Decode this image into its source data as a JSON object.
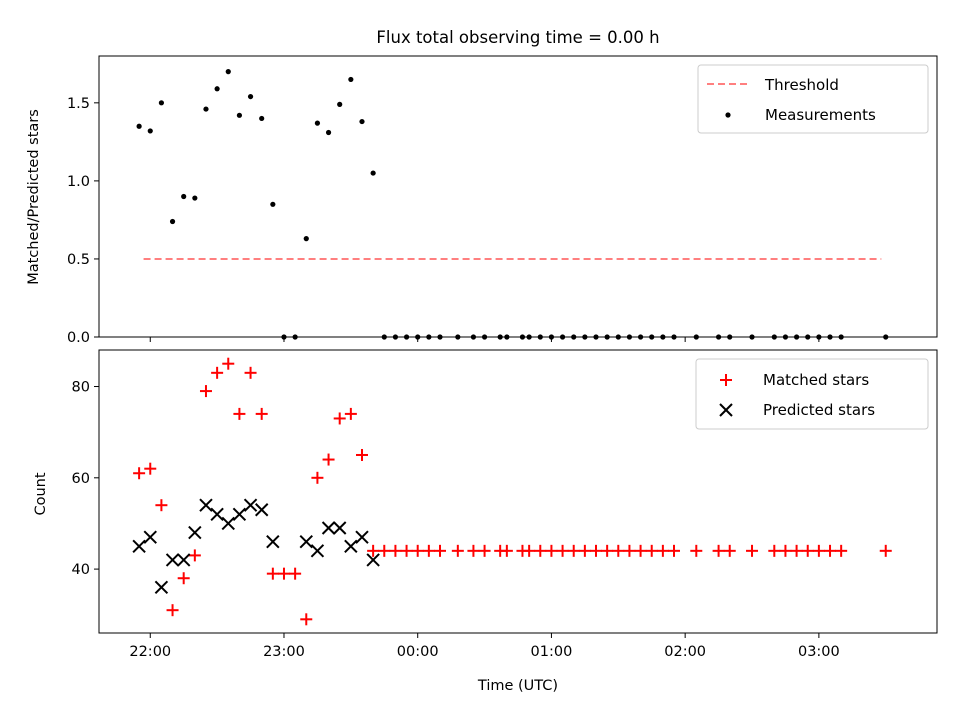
{
  "chart_data": [
    {
      "type": "scatter",
      "title": "Flux total observing time = 0.00 h",
      "xlabel": "",
      "ylabel": "Matched/Predicted stars",
      "xlim": [
        "21:37",
        "03:53"
      ],
      "ylim": [
        0,
        1.8
      ],
      "yticks": [
        0.0,
        0.5,
        1.0,
        1.5
      ],
      "yticklabels": [
        "0.0",
        "0.5",
        "1.0",
        "1.5"
      ],
      "xticks": [
        "22:00",
        "23:00",
        "00:00",
        "01:00",
        "02:00",
        "03:00"
      ],
      "xticklabels_visible": false,
      "legend": {
        "placement": "top-right",
        "entries": [
          "Threshold",
          "Measurements"
        ]
      },
      "threshold": {
        "name": "Threshold",
        "value": 0.5,
        "x_start": "21:57",
        "x_end": "03:28",
        "color": "#ff7f7f",
        "style": "dashed"
      },
      "series": [
        {
          "name": "Measurements",
          "marker": "dot",
          "color": "#000000",
          "x": [
            "21:55",
            "22:00",
            "22:05",
            "22:10",
            "22:15",
            "22:20",
            "22:25",
            "22:30",
            "22:35",
            "22:40",
            "22:45",
            "22:50",
            "22:55",
            "23:00",
            "23:05",
            "23:10",
            "23:15",
            "23:20",
            "23:25",
            "23:30",
            "23:35",
            "23:40",
            "23:45",
            "23:50",
            "23:55",
            "00:00",
            "00:05",
            "00:10",
            "00:18",
            "00:25",
            "00:30",
            "00:37",
            "00:40",
            "00:47",
            "00:50",
            "00:55",
            "01:00",
            "01:05",
            "01:10",
            "01:15",
            "01:20",
            "01:25",
            "01:30",
            "01:35",
            "01:40",
            "01:45",
            "01:50",
            "01:55",
            "02:05",
            "02:15",
            "02:20",
            "02:30",
            "02:40",
            "02:45",
            "02:50",
            "02:55",
            "03:00",
            "03:05",
            "03:10",
            "03:30"
          ],
          "y": [
            1.35,
            1.32,
            1.5,
            0.74,
            0.9,
            0.89,
            1.46,
            1.59,
            1.7,
            1.42,
            1.54,
            1.4,
            0.85,
            0.0,
            0.0,
            0.63,
            1.37,
            1.31,
            1.49,
            1.65,
            1.38,
            1.05,
            0.0,
            0.0,
            0.0,
            0.0,
            0.0,
            0.0,
            0.0,
            0.0,
            0.0,
            0.0,
            0.0,
            0.0,
            0.0,
            0.0,
            0.0,
            0.0,
            0.0,
            0.0,
            0.0,
            0.0,
            0.0,
            0.0,
            0.0,
            0.0,
            0.0,
            0.0,
            0.0,
            0.0,
            0.0,
            0.0,
            0.0,
            0.0,
            0.0,
            0.0,
            0.0,
            0.0,
            0.0,
            0.0
          ]
        }
      ]
    },
    {
      "type": "scatter",
      "title": "",
      "xlabel": "Time (UTC)",
      "ylabel": "Count",
      "xlim": [
        "21:37",
        "03:53"
      ],
      "ylim": [
        26,
        88
      ],
      "yticks": [
        40,
        60,
        80
      ],
      "yticklabels": [
        "40",
        "60",
        "80"
      ],
      "xticks": [
        "22:00",
        "23:00",
        "00:00",
        "01:00",
        "02:00",
        "03:00"
      ],
      "xticklabels": [
        "22:00",
        "23:00",
        "00:00",
        "01:00",
        "02:00",
        "03:00"
      ],
      "legend": {
        "placement": "top-right",
        "entries": [
          "Matched stars",
          "Predicted stars"
        ]
      },
      "series": [
        {
          "name": "Matched stars",
          "marker": "plus",
          "color": "#ff0000",
          "x": [
            "21:55",
            "22:00",
            "22:05",
            "22:10",
            "22:15",
            "22:20",
            "22:25",
            "22:30",
            "22:35",
            "22:40",
            "22:45",
            "22:50",
            "22:55",
            "23:00",
            "23:05",
            "23:10",
            "23:15",
            "23:20",
            "23:25",
            "23:30",
            "23:35",
            "23:40",
            "23:45",
            "23:50",
            "23:55",
            "00:00",
            "00:05",
            "00:10",
            "00:18",
            "00:25",
            "00:30",
            "00:37",
            "00:40",
            "00:47",
            "00:50",
            "00:55",
            "01:00",
            "01:05",
            "01:10",
            "01:15",
            "01:20",
            "01:25",
            "01:30",
            "01:35",
            "01:40",
            "01:45",
            "01:50",
            "01:55",
            "02:05",
            "02:15",
            "02:20",
            "02:30",
            "02:40",
            "02:45",
            "02:50",
            "02:55",
            "03:00",
            "03:05",
            "03:10",
            "03:30"
          ],
          "y": [
            61,
            62,
            54,
            31,
            38,
            43,
            79,
            83,
            85,
            74,
            83,
            74,
            39,
            39,
            39,
            29,
            60,
            64,
            73,
            74,
            65,
            44,
            44,
            44,
            44,
            44,
            44,
            44,
            44,
            44,
            44,
            44,
            44,
            44,
            44,
            44,
            44,
            44,
            44,
            44,
            44,
            44,
            44,
            44,
            44,
            44,
            44,
            44,
            44,
            44,
            44,
            44,
            44,
            44,
            44,
            44,
            44,
            44,
            44,
            44
          ]
        },
        {
          "name": "Predicted stars",
          "marker": "x",
          "color": "#000000",
          "x": [
            "21:55",
            "22:00",
            "22:05",
            "22:10",
            "22:15",
            "22:20",
            "22:25",
            "22:30",
            "22:35",
            "22:40",
            "22:45",
            "22:50",
            "22:55",
            "23:10",
            "23:15",
            "23:20",
            "23:25",
            "23:30",
            "23:35",
            "23:40"
          ],
          "y": [
            45,
            47,
            36,
            42,
            42,
            48,
            54,
            52,
            50,
            52,
            54,
            53,
            46,
            46,
            44,
            49,
            49,
            45,
            47,
            42
          ]
        }
      ]
    }
  ]
}
